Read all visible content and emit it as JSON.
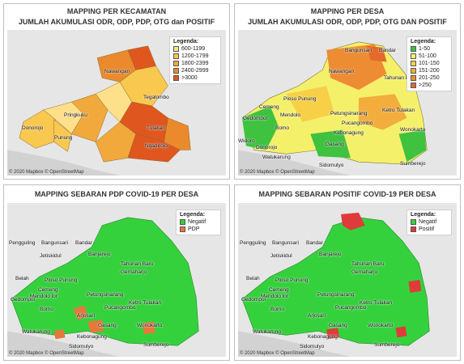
{
  "copyright": "© 2020 Mapbox © OpenStreetMap",
  "panels": {
    "kecamatan": {
      "title1": "MAPPING PER KECAMATAN",
      "title2": "JUMLAH AKUMULASI ODR, ODP, PDP, OTG dan POSITIF",
      "legend_title": "Legenda:",
      "legend": [
        {
          "label": "600-1199",
          "color": "#ffe08a"
        },
        {
          "label": "1200-1799",
          "color": "#f9c84f"
        },
        {
          "label": "1800-2399",
          "color": "#f2a93b"
        },
        {
          "label": "2400-2999",
          "color": "#ea8a2c"
        },
        {
          "label": ">3000",
          "color": "#e0561f"
        }
      ],
      "places": [
        "Nawangan",
        "Tegalombo",
        "Pringkuku",
        "Donorojo",
        "Punung",
        "Tulakan",
        "Ngadirojo"
      ]
    },
    "desa": {
      "title1": "MAPPING PER DESA",
      "title2": "JUMLAH AKUMULASI ODR, ODP, PDP, OTG DAN POSITIF",
      "legend_title": "Legenda:",
      "legend": [
        {
          "label": "1-50",
          "color": "#3fc23f"
        },
        {
          "label": "51-100",
          "color": "#f5f06a"
        },
        {
          "label": "101-150",
          "color": "#f7d048"
        },
        {
          "label": "151-200",
          "color": "#f2ad3c"
        },
        {
          "label": "201-250",
          "color": "#ed8c33"
        },
        {
          "label": ">250",
          "color": "#e56a2a"
        }
      ],
      "places": [
        "Bangunsari",
        "Bandar",
        "Tahunan Baru",
        "Nawangan",
        "Ploso Punung",
        "Cemeng",
        "Mendolo",
        "Petungsinarang",
        "Gedompol",
        "Bomo",
        "Kebonagung",
        "Pucangombo",
        "Ketro Tulakan",
        "Wonokarto",
        "Widoro",
        "Donorojo",
        "Watukarung",
        "Gasang",
        "Sidomulyo",
        "Sumberejo"
      ]
    },
    "pdp": {
      "title1": "MAPPING SEBARAN PDP COVID-19 PER DESA",
      "legend_title": "Legenda:",
      "legend": [
        {
          "label": "Negatif",
          "color": "#35d13d"
        },
        {
          "label": "PDP",
          "color": "#e8763a"
        }
      ],
      "places": [
        "Pengguling",
        "Bangunsari",
        "Bandar",
        "Jetiskidul",
        "Banjarejo",
        "Tahunan Baru",
        "Gemaharjo",
        "Belah",
        "Ploso Punung",
        "Cemeng",
        "Mendolo lor",
        "Gedompol",
        "Bomo",
        "Petungsinarang",
        "Pucangombo",
        "Ketro Tulakan",
        "Arjosari",
        "Gasang",
        "Wonokarto",
        "Watukarung",
        "Kebonagung",
        "Sidomulyo",
        "Sumberejo"
      ]
    },
    "positif": {
      "title1": "MAPPING SEBARAN POSITIF COVID-19 PER DESA",
      "legend_title": "Legenda:",
      "legend": [
        {
          "label": "Negatif",
          "color": "#35d13d"
        },
        {
          "label": "Positif",
          "color": "#e03a3a"
        }
      ],
      "places": [
        "Pengguling",
        "Bangunsari",
        "Bandar",
        "Jetiskidul",
        "Banjarejo",
        "Tahunan Baru",
        "Gemaharjo",
        "Belah",
        "Ploso Punung",
        "Cemeng",
        "Mendolo lor",
        "Gedompol",
        "Bomo",
        "Petungsinarang",
        "Pucangombo",
        "Ketro Tulakan",
        "Arjosari",
        "Gasang",
        "Wonokarto",
        "Watukarung",
        "Kebonagung",
        "Sidomulyo",
        "Sumberejo"
      ]
    }
  }
}
